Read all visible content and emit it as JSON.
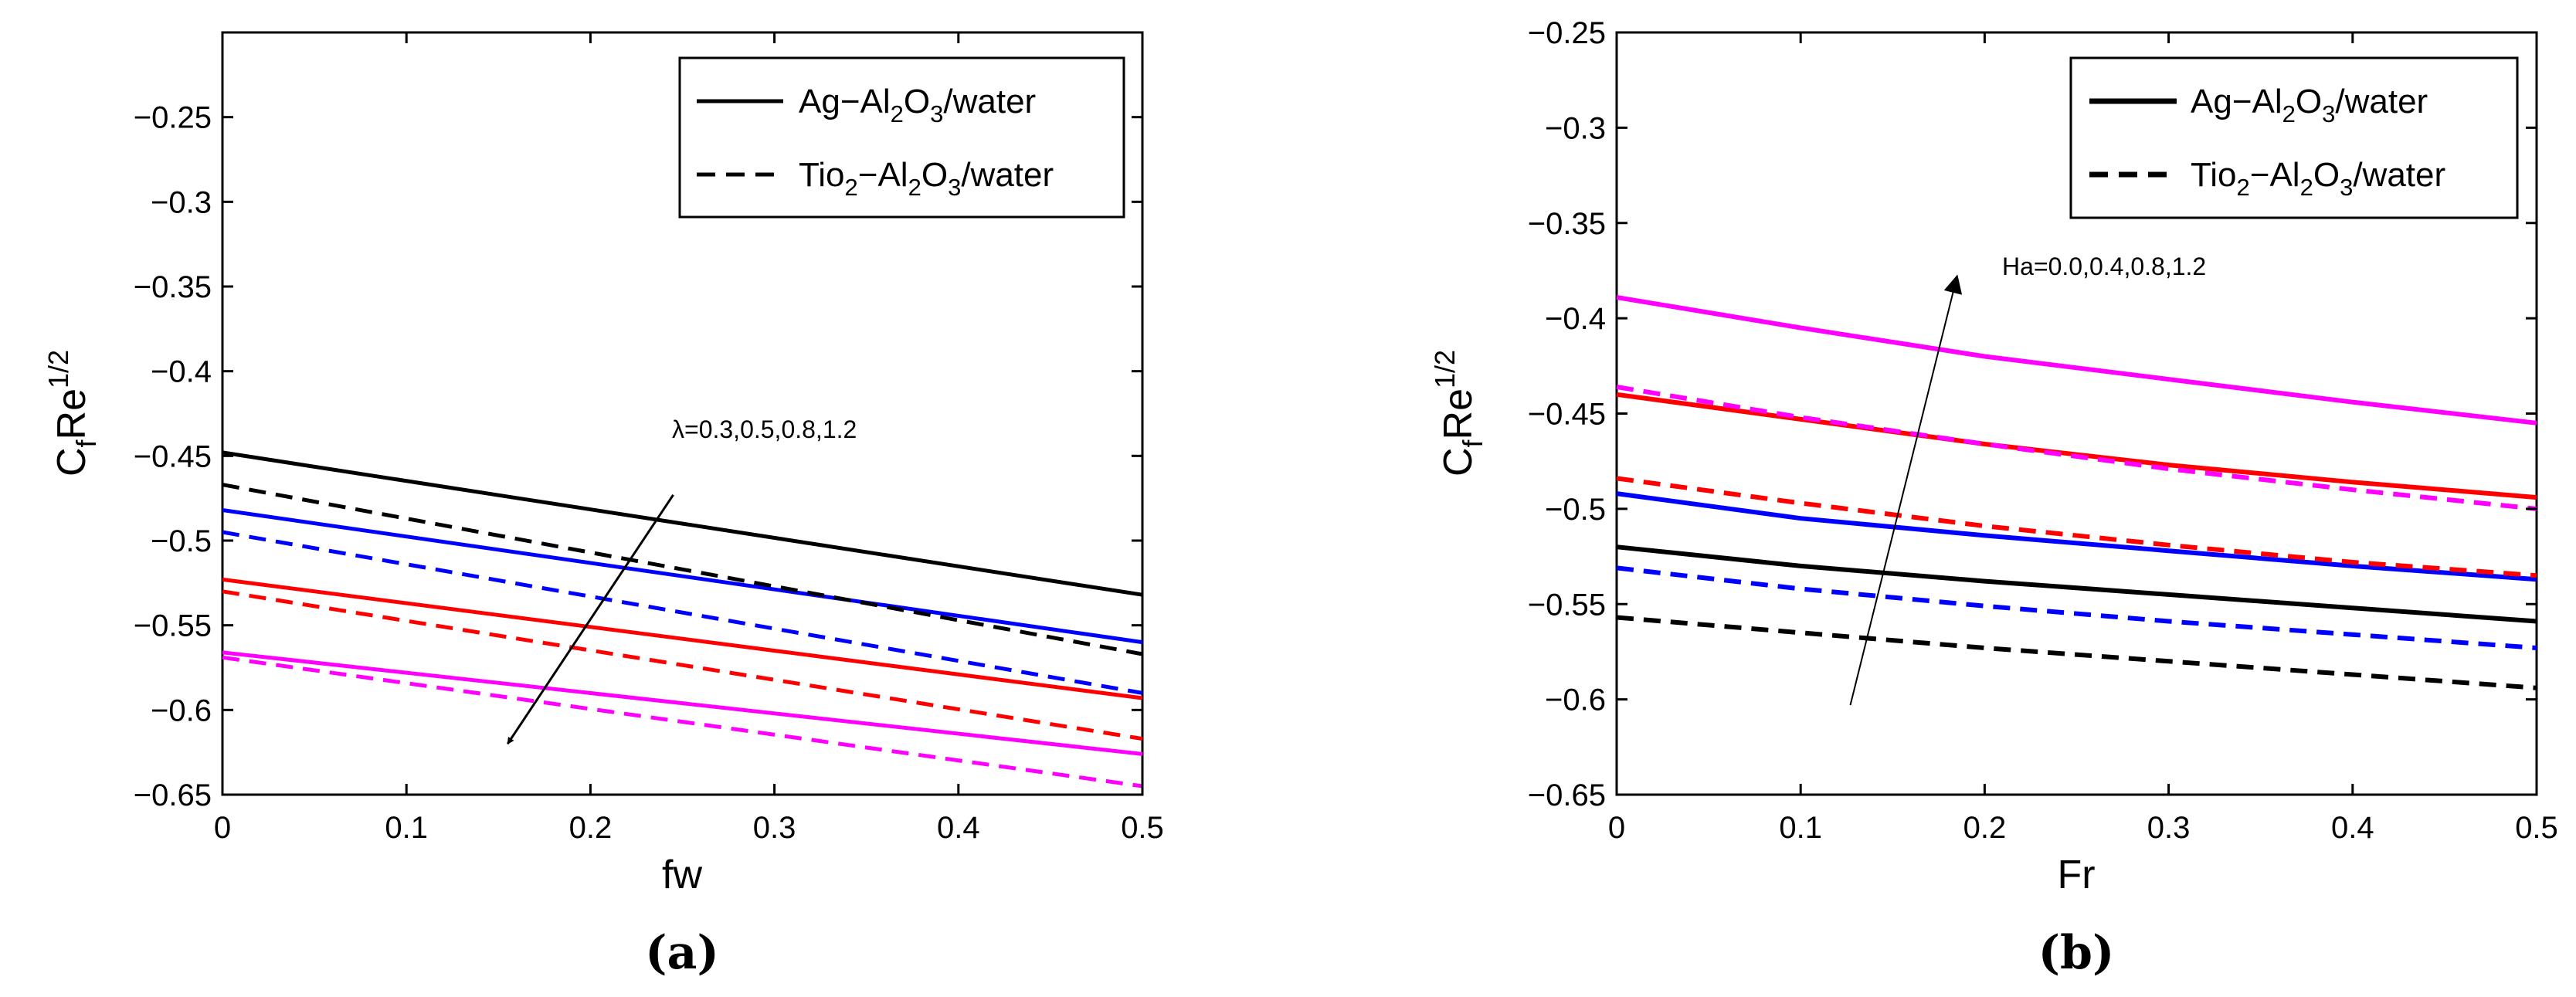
{
  "chart_data": [
    {
      "type": "line",
      "panel_label": "(a)",
      "xlabel": "fw",
      "ylabel": "C_f Re^1/2",
      "ylabel_parts": {
        "c": "C",
        "f": "f",
        "re": "Re",
        "exp": "1/2"
      },
      "xlim": [
        0,
        0.5
      ],
      "ylim": [
        -0.65,
        -0.2
      ],
      "xticks": [
        "0",
        "0.1",
        "0.2",
        "0.3",
        "0.4",
        "0.5"
      ],
      "yticks": [
        "-0.25",
        "-0.3",
        "-0.35",
        "-0.4",
        "-0.45",
        "-0.5",
        "-0.55",
        "-0.6",
        "-0.65"
      ],
      "legend": {
        "placement": "top-right",
        "entries": [
          {
            "name": "Ag-Al2O3/water",
            "parts": [
              "Ag",
              "−Al",
              "2",
              "O",
              "3",
              "/water"
            ],
            "style": "solid"
          },
          {
            "name": "Tio2-Al2O3/water",
            "parts": [
              "Tio",
              "2",
              "−Al",
              "2",
              "O",
              "3",
              "/water"
            ],
            "style": "dashed"
          }
        ]
      },
      "annotation": {
        "text": "λ=0.3,0.5,0.8,1.2",
        "arrow_from": [
          0.245,
          -0.473
        ],
        "arrow_to": [
          0.155,
          -0.62
        ]
      },
      "series": [
        {
          "name": "Ag-Al2O3/water, λ=0.3",
          "color": "#000000",
          "style": "solid",
          "x": [
            0,
            0.5
          ],
          "y": [
            -0.448,
            -0.532
          ]
        },
        {
          "name": "Ag-Al2O3/water, λ=0.5",
          "color": "#0000ff",
          "style": "solid",
          "x": [
            0,
            0.5
          ],
          "y": [
            -0.482,
            -0.56
          ]
        },
        {
          "name": "Ag-Al2O3/water, λ=0.8",
          "color": "#ff0000",
          "style": "solid",
          "x": [
            0,
            0.5
          ],
          "y": [
            -0.523,
            -0.593
          ]
        },
        {
          "name": "Ag-Al2O3/water, λ=1.2",
          "color": "#ff00ff",
          "style": "solid",
          "x": [
            0,
            0.5
          ],
          "y": [
            -0.566,
            -0.626
          ]
        },
        {
          "name": "Tio2-Al2O3/water, λ=0.3",
          "color": "#000000",
          "style": "dashed",
          "x": [
            0,
            0.5
          ],
          "y": [
            -0.467,
            -0.567
          ]
        },
        {
          "name": "Tio2-Al2O3/water, λ=0.5",
          "color": "#0000ff",
          "style": "dashed",
          "x": [
            0,
            0.5
          ],
          "y": [
            -0.495,
            -0.59
          ]
        },
        {
          "name": "Tio2-Al2O3/water, λ=0.8",
          "color": "#ff0000",
          "style": "dashed",
          "x": [
            0,
            0.5
          ],
          "y": [
            -0.53,
            -0.617
          ]
        },
        {
          "name": "Tio2-Al2O3/water, λ=1.2",
          "color": "#ff00ff",
          "style": "dashed",
          "x": [
            0,
            0.5
          ],
          "y": [
            -0.569,
            -0.645
          ]
        }
      ]
    },
    {
      "type": "line",
      "panel_label": "(b)",
      "xlabel": "Fr",
      "ylabel": "C_f Re^1/2",
      "ylabel_parts": {
        "c": "C",
        "f": "f",
        "re": "Re",
        "exp": "1/2"
      },
      "xlim": [
        0,
        0.5
      ],
      "ylim": [
        -0.65,
        -0.25
      ],
      "xticks": [
        "0",
        "0.1",
        "0.2",
        "0.3",
        "0.4",
        "0.5"
      ],
      "yticks": [
        "-0.25",
        "-0.3",
        "-0.35",
        "-0.4",
        "-0.45",
        "-0.5",
        "-0.55",
        "-0.6",
        "-0.65"
      ],
      "legend": {
        "placement": "top-right",
        "entries": [
          {
            "name": "Ag-Al2O3/water",
            "parts": [
              "Ag",
              "−Al",
              "2",
              "O",
              "3",
              "/water"
            ],
            "style": "solid"
          },
          {
            "name": "Tio2-Al2O3/water",
            "parts": [
              "Tio",
              "2",
              "−Al",
              "2",
              "O",
              "3",
              "/water"
            ],
            "style": "dashed"
          }
        ]
      },
      "annotation": {
        "text": "Ha=0.0,0.4,0.8,1.2",
        "arrow_from": [
          0.127,
          -0.603
        ],
        "arrow_to": [
          0.185,
          -0.378
        ]
      },
      "series": [
        {
          "name": "Ag-Al2O3/water, Ha=0.0",
          "color": "#000000",
          "style": "solid",
          "x": [
            0,
            0.1,
            0.2,
            0.3,
            0.4,
            0.5
          ],
          "y": [
            -0.52,
            -0.53,
            -0.538,
            -0.545,
            -0.552,
            -0.559
          ]
        },
        {
          "name": "Ag-Al2O3/water, Ha=0.4",
          "color": "#0000ff",
          "style": "solid",
          "x": [
            0,
            0.1,
            0.2,
            0.3,
            0.4,
            0.5
          ],
          "y": [
            -0.492,
            -0.505,
            -0.514,
            -0.522,
            -0.53,
            -0.537
          ]
        },
        {
          "name": "Ag-Al2O3/water, Ha=0.8",
          "color": "#ff0000",
          "style": "solid",
          "x": [
            0,
            0.1,
            0.2,
            0.3,
            0.4,
            0.5
          ],
          "y": [
            -0.44,
            -0.453,
            -0.466,
            -0.477,
            -0.486,
            -0.494
          ]
        },
        {
          "name": "Ag-Al2O3/water, Ha=1.2",
          "color": "#ff00ff",
          "style": "solid",
          "x": [
            0,
            0.1,
            0.2,
            0.3,
            0.4,
            0.5
          ],
          "y": [
            -0.389,
            -0.405,
            -0.42,
            -0.432,
            -0.444,
            -0.455
          ]
        },
        {
          "name": "Tio2-Al2O3/water, Ha=0.0",
          "color": "#000000",
          "style": "dashed",
          "x": [
            0,
            0.1,
            0.2,
            0.3,
            0.4,
            0.5
          ],
          "y": [
            -0.557,
            -0.565,
            -0.573,
            -0.58,
            -0.587,
            -0.594
          ]
        },
        {
          "name": "Tio2-Al2O3/water, Ha=0.4",
          "color": "#0000ff",
          "style": "dashed",
          "x": [
            0,
            0.1,
            0.2,
            0.3,
            0.4,
            0.5
          ],
          "y": [
            -0.531,
            -0.542,
            -0.551,
            -0.559,
            -0.566,
            -0.573
          ]
        },
        {
          "name": "Tio2-Al2O3/water, Ha=0.8",
          "color": "#ff0000",
          "style": "dashed",
          "x": [
            0,
            0.1,
            0.2,
            0.3,
            0.4,
            0.5
          ],
          "y": [
            -0.484,
            -0.497,
            -0.509,
            -0.519,
            -0.528,
            -0.535
          ]
        },
        {
          "name": "Tio2-Al2O3/water, Ha=1.2",
          "color": "#ff00ff",
          "style": "dashed",
          "x": [
            0,
            0.1,
            0.2,
            0.3,
            0.4,
            0.5
          ],
          "y": [
            -0.436,
            -0.452,
            -0.466,
            -0.479,
            -0.49,
            -0.5
          ]
        }
      ]
    }
  ]
}
